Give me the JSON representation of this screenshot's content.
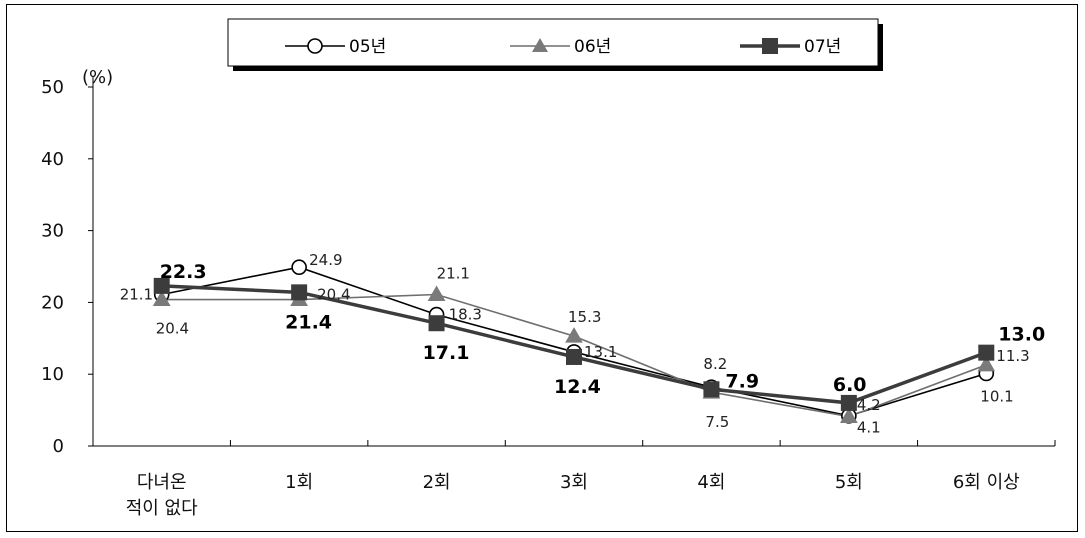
{
  "chart_data": {
    "type": "line",
    "y_unit_label": "(%)",
    "ylim": [
      0,
      50
    ],
    "yticks": [
      0,
      10,
      20,
      30,
      40,
      50
    ],
    "categories": [
      [
        "다녀온",
        "적이 없다"
      ],
      [
        "1회"
      ],
      [
        "2회"
      ],
      [
        "3회"
      ],
      [
        "4회"
      ],
      [
        "5회"
      ],
      [
        "6회 이상"
      ]
    ],
    "series": [
      {
        "name": "05년",
        "values": [
          21.1,
          24.9,
          18.3,
          13.1,
          8.2,
          4.2,
          10.1
        ],
        "color": "#000000",
        "marker": "circle"
      },
      {
        "name": "06년",
        "values": [
          20.4,
          20.4,
          21.1,
          15.3,
          7.5,
          4.1,
          11.3
        ],
        "color": "#6e6e6e",
        "marker": "triangle"
      },
      {
        "name": "07년",
        "values": [
          22.3,
          21.4,
          17.1,
          12.4,
          7.9,
          6.0,
          13.0
        ],
        "color": "#3c3c3c",
        "marker": "square"
      }
    ],
    "data_labels": {
      "05년": [
        "21.1",
        "24.9",
        "18.3",
        "13.1",
        "8.2",
        "4.2",
        "10.1"
      ],
      "06년": [
        "20.4",
        "20.4",
        "21.1",
        "15.3",
        "7.5",
        "4.1",
        "11.3"
      ],
      "07년": [
        "22.3",
        "21.4",
        "17.1",
        "12.4",
        "7.9",
        "6.0",
        "13.0"
      ]
    },
    "grid": false,
    "legend_position": "top-center"
  }
}
